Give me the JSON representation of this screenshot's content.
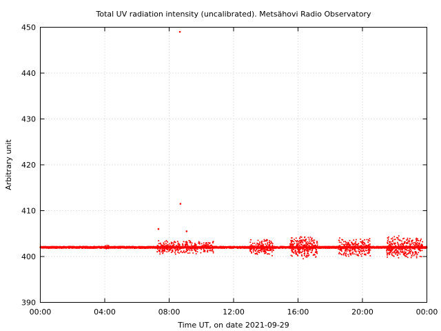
{
  "chart_data": {
    "type": "scatter",
    "title": "Total UV radiation intensity (uncalibrated). Metsähovi Radio Observatory",
    "xlabel": "Time UT, on date 2021-09-29",
    "ylabel": "Arbitrary unit",
    "xlim": [
      "00:00",
      "24:00"
    ],
    "ylim": [
      390,
      450
    ],
    "x_tick_labels": [
      "00:00",
      "04:00",
      "08:00",
      "12:00",
      "16:00",
      "20:00",
      "00:00"
    ],
    "y_tick_labels": [
      "390",
      "400",
      "410",
      "420",
      "430",
      "440",
      "450"
    ],
    "grid": true,
    "series": [
      {
        "color": "#ff0000",
        "baseline_value": 402,
        "baseline_span": [
          "00:00",
          "24:00"
        ],
        "noisy_intervals": [
          {
            "start": "04:00",
            "end": "04:15",
            "spread": 0.4
          },
          {
            "start": "07:15",
            "end": "10:45",
            "spread": 1.0
          },
          {
            "start": "13:00",
            "end": "14:30",
            "spread": 1.2
          },
          {
            "start": "15:30",
            "end": "17:15",
            "spread": 1.6
          },
          {
            "start": "18:30",
            "end": "20:30",
            "spread": 1.3
          },
          {
            "start": "21:30",
            "end": "23:45",
            "spread": 1.6
          }
        ],
        "outliers": [
          {
            "x": "07:20",
            "y": 406
          },
          {
            "x": "08:40",
            "y": 449
          },
          {
            "x": "08:42",
            "y": 411.5
          },
          {
            "x": "09:05",
            "y": 405.5
          }
        ]
      }
    ]
  }
}
